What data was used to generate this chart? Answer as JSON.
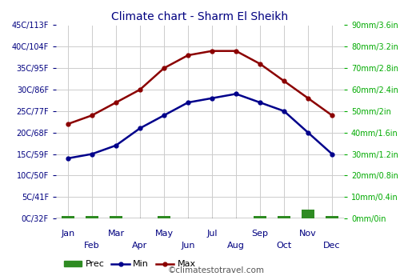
{
  "title": "Climate chart - Sharm El Sheikh",
  "months_all": [
    "Jan",
    "Feb",
    "Mar",
    "Apr",
    "May",
    "Jun",
    "Jul",
    "Aug",
    "Sep",
    "Oct",
    "Nov",
    "Dec"
  ],
  "temp_max": [
    22,
    24,
    27,
    30,
    35,
    38,
    39,
    39,
    36,
    32,
    28,
    24
  ],
  "temp_min": [
    14,
    15,
    17,
    21,
    24,
    27,
    28,
    29,
    27,
    25,
    20,
    15
  ],
  "precip_mm": [
    1,
    1,
    1,
    0,
    1,
    0,
    0,
    0,
    1,
    1,
    4,
    1
  ],
  "temp_ylim_min": 0,
  "temp_ylim_max": 45,
  "precip_ylim_min": 0,
  "precip_ylim_max": 90,
  "left_yticks": [
    0,
    5,
    10,
    15,
    20,
    25,
    30,
    35,
    40,
    45
  ],
  "left_yticklabels": [
    "0C/32F",
    "5C/41F",
    "10C/50F",
    "15C/59F",
    "20C/68F",
    "25C/77F",
    "30C/86F",
    "35C/95F",
    "40C/104F",
    "45C/113F"
  ],
  "right_yticks": [
    0,
    10,
    20,
    30,
    40,
    50,
    60,
    70,
    80,
    90
  ],
  "right_yticklabels": [
    "0mm/0in",
    "10mm/0.4in",
    "20mm/0.8in",
    "30mm/1.2in",
    "40mm/1.6in",
    "50mm/2in",
    "60mm/2.4in",
    "70mm/2.8in",
    "80mm/3.2in",
    "90mm/3.6in"
  ],
  "line_min_color": "#00008B",
  "line_max_color": "#8B0000",
  "bar_color": "#2E8B22",
  "grid_color": "#cccccc",
  "title_color": "#000080",
  "axis_label_color_left": "#000080",
  "axis_label_color_right": "#00AA00",
  "watermark": "©climatestotravel.com",
  "bg_color": "#ffffff"
}
